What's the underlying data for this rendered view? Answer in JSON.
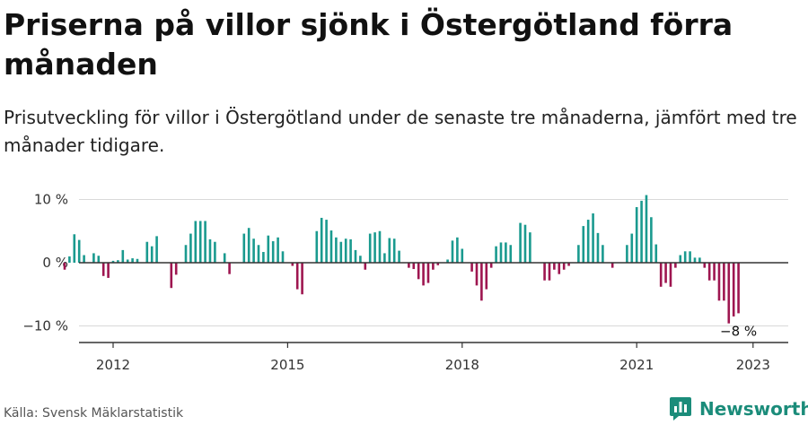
{
  "header": {
    "title": "Priserna på villor sjönk i Östergötland förra månaden",
    "subtitle": "Prisutveckling för villor i Östergötland under de senaste tre månaderna, jämfört med tre månader tidigare."
  },
  "footer": {
    "source": "Källa: Svensk Mäklarstatistik",
    "brand": "Newsworthy",
    "brand_icon": "newsworthy-logo-icon",
    "brand_color": "#1b8c7a"
  },
  "colors": {
    "positive": "#1a9a8f",
    "negative": "#9e1650",
    "grid": "#d9d9d9",
    "axis": "#333333"
  },
  "chart_data": {
    "type": "bar",
    "title": "Priserna på villor sjönk i Östergötland förra månaden",
    "xlabel": "",
    "ylabel": "",
    "ylim": [
      -12.5,
      11
    ],
    "yticks": [
      {
        "value": 10,
        "label": "10 %"
      },
      {
        "value": 0,
        "label": "0 %"
      },
      {
        "value": -10,
        "label": "−10 %"
      }
    ],
    "xticks": [
      {
        "value": 2012,
        "label": "2012"
      },
      {
        "value": 2015,
        "label": "2015"
      },
      {
        "value": 2018,
        "label": "2018"
      },
      {
        "value": 2021,
        "label": "2021"
      },
      {
        "value": 2023,
        "label": "2023"
      }
    ],
    "x_start": 2011.1667,
    "x_step": 0.08333,
    "grid": true,
    "values": [
      -1.1,
      1.0,
      4.5,
      3.6,
      1.2,
      0,
      1.5,
      1.1,
      -2.1,
      -2.4,
      0.3,
      0.4,
      2.0,
      0.5,
      0.7,
      0.6,
      0,
      3.3,
      2.6,
      4.2,
      0,
      0,
      -4.0,
      -1.9,
      0,
      2.8,
      4.6,
      6.6,
      6.6,
      6.6,
      3.7,
      3.3,
      0,
      1.5,
      -1.8,
      0,
      0,
      4.6,
      5.5,
      3.8,
      2.8,
      1.7,
      4.3,
      3.4,
      4.0,
      1.8,
      0,
      -0.5,
      -4.2,
      -5.0,
      0,
      0,
      5.0,
      7.1,
      6.8,
      5.1,
      4.0,
      3.3,
      3.8,
      3.7,
      2.0,
      1.1,
      -1.1,
      4.6,
      4.8,
      5.0,
      1.5,
      3.9,
      3.8,
      1.9,
      0,
      -0.8,
      -1.0,
      -2.6,
      -3.6,
      -3.2,
      -1.1,
      -0.4,
      0,
      0.5,
      3.5,
      4.0,
      2.2,
      0,
      -1.4,
      -3.6,
      -6.0,
      -4.2,
      -0.8,
      2.6,
      3.2,
      3.2,
      2.8,
      0,
      6.3,
      6.0,
      4.8,
      0,
      0,
      -2.8,
      -2.8,
      -1.1,
      -1.8,
      -1.1,
      -0.5,
      0,
      2.8,
      5.8,
      6.8,
      7.8,
      4.7,
      2.8,
      0,
      -0.8,
      0,
      0,
      2.8,
      4.6,
      8.8,
      9.8,
      10.7,
      7.2,
      2.9,
      -3.8,
      -3.2,
      -3.8,
      -0.8,
      1.2,
      1.8,
      1.8,
      0.8,
      0.8,
      -0.8,
      -2.8,
      -2.8,
      -6.0,
      -6.0,
      -9.6,
      -8.5,
      -8.0
    ],
    "annotations": [
      {
        "index": 139,
        "label": "−8 %"
      }
    ]
  }
}
